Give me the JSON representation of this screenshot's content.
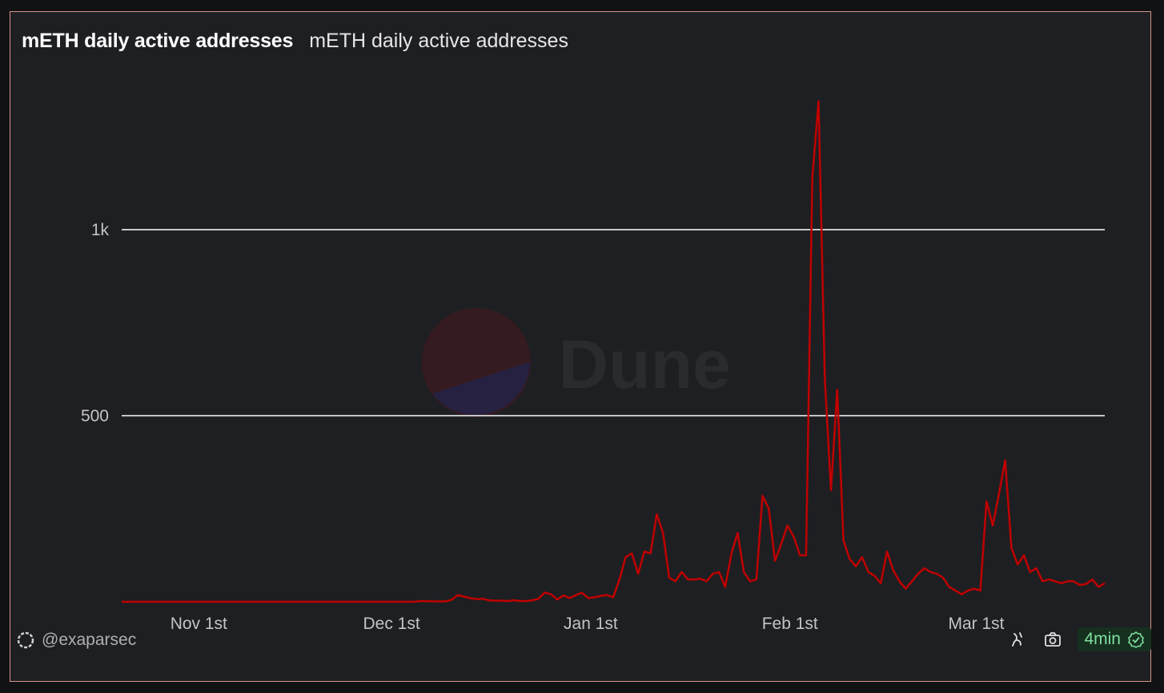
{
  "header": {
    "title": "mETH daily active addresses",
    "subtitle": "mETH daily active addresses"
  },
  "watermark": {
    "text": "Dune"
  },
  "footer": {
    "author": "@exaparsec",
    "refresh_label": "4min",
    "icons": [
      "ribbon-icon",
      "camera-icon",
      "check-badge-icon"
    ]
  },
  "colors": {
    "line": "#c00000",
    "background": "#1e1f22",
    "border": "#d8958a",
    "grid": "#ffffff"
  },
  "chart_data": {
    "type": "line",
    "title": "mETH daily active addresses",
    "xlabel": "",
    "ylabel": "",
    "x_start": "2023-10-20",
    "x_end": "2024-03-21",
    "ylim": [
      0,
      1400
    ],
    "yticks": [
      {
        "value": 500,
        "label": "500"
      },
      {
        "value": 1000,
        "label": "1k"
      }
    ],
    "xticks": [
      {
        "date": "2023-11-01",
        "label": "Nov 1st"
      },
      {
        "date": "2023-12-01",
        "label": "Dec 1st"
      },
      {
        "date": "2024-01-01",
        "label": "Jan 1st"
      },
      {
        "date": "2024-02-01",
        "label": "Feb 1st"
      },
      {
        "date": "2024-03-01",
        "label": "Mar 1st"
      }
    ],
    "grid": true,
    "legend": "none",
    "series": [
      {
        "values": [
          0,
          0,
          0,
          0,
          0,
          0,
          0,
          0,
          0,
          0,
          0,
          0,
          0,
          0,
          0,
          0,
          0,
          0,
          0,
          0,
          0,
          0,
          0,
          0,
          0,
          0,
          0,
          0,
          0,
          0,
          0,
          0,
          0,
          0,
          0,
          0,
          0,
          0,
          0,
          0,
          0,
          0,
          0,
          0,
          0,
          0,
          0,
          0,
          0,
          0,
          0,
          0,
          0,
          0,
          0,
          0,
          0,
          0,
          0,
          0,
          0,
          0,
          0,
          0,
          0,
          0,
          0,
          0,
          0,
          0,
          0,
          0,
          0,
          0,
          0,
          0,
          0,
          0,
          0,
          0,
          0,
          0,
          0,
          0,
          0,
          0,
          0,
          0,
          0,
          0,
          0,
          0,
          0,
          0,
          0,
          0,
          0,
          0,
          0,
          0,
          0,
          0,
          0,
          0,
          0,
          0,
          0,
          0,
          0,
          0,
          0,
          0,
          0,
          0,
          0,
          0,
          0,
          0,
          0,
          0,
          0,
          0,
          0,
          0,
          0,
          0,
          0,
          0,
          0,
          0,
          0,
          0,
          0,
          0,
          0,
          0,
          0,
          0,
          0,
          0,
          0,
          0,
          0,
          0,
          0,
          0,
          0,
          0,
          0,
          0,
          0,
          0,
          0,
          0,
          0,
          0,
          0,
          0,
          0,
          0,
          0,
          0,
          0,
          0,
          0,
          0,
          0,
          0,
          0,
          0,
          0,
          0,
          0,
          0,
          0,
          0,
          0,
          0,
          0,
          0
        ]
      }
    ]
  }
}
